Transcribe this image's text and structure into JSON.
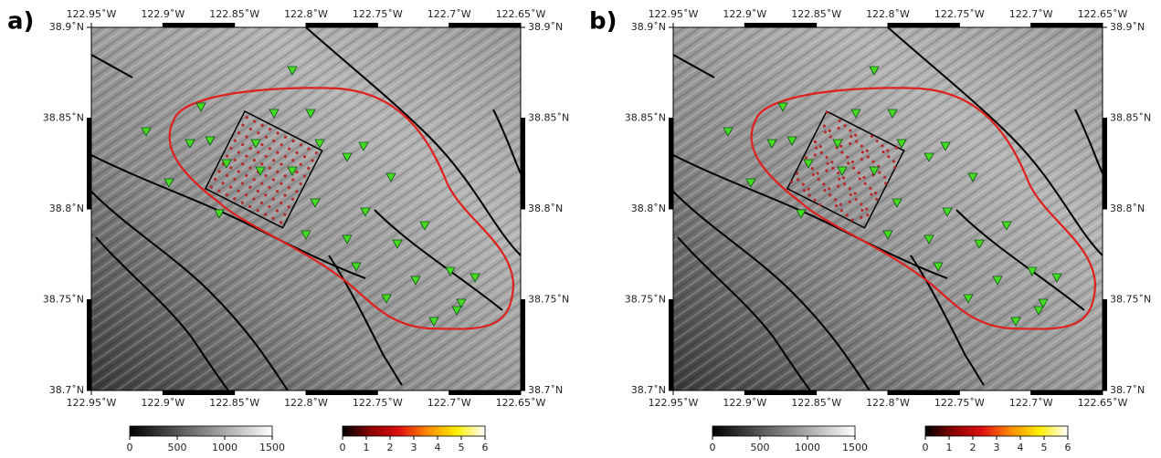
{
  "panels": [
    {
      "label": "a)",
      "xlim": [
        -122.95,
        -122.65
      ],
      "ylim": [
        38.7,
        38.9
      ],
      "xticks": [
        {
          "value": -122.95,
          "label": "122.95˚W"
        },
        {
          "value": -122.9,
          "label": "122.9˚W"
        },
        {
          "value": -122.85,
          "label": "122.85˚W"
        },
        {
          "value": -122.8,
          "label": "122.8˚W"
        },
        {
          "value": -122.75,
          "label": "122.75˚W"
        },
        {
          "value": -122.7,
          "label": "122.7˚W"
        },
        {
          "value": -122.65,
          "label": "122.65˚W"
        }
      ],
      "yticks": [
        {
          "value": 38.7,
          "label": "38.7˚N"
        },
        {
          "value": 38.75,
          "label": "38.75˚N"
        },
        {
          "value": 38.8,
          "label": "38.8˚N"
        },
        {
          "value": 38.85,
          "label": "38.85˚N"
        },
        {
          "value": 38.9,
          "label": "38.9˚N"
        }
      ],
      "colorbars": [
        {
          "lim": [
            0,
            1500
          ],
          "ticks": [
            0,
            500,
            1000,
            1500
          ],
          "colors": [
            "#000000",
            "#ffffff"
          ]
        },
        {
          "lim": [
            0,
            6
          ],
          "ticks": [
            0,
            1,
            2,
            3,
            4,
            5,
            6
          ],
          "colors": [
            "#000000",
            "#8b0000",
            "#e01010",
            "#ff8c00",
            "#ffee00",
            "#ffffff"
          ]
        }
      ]
    },
    {
      "label": "b)",
      "xlim": [
        -122.95,
        -122.65
      ],
      "ylim": [
        38.7,
        38.9
      ],
      "xticks": [
        {
          "value": -122.95,
          "label": "122.95˚W"
        },
        {
          "value": -122.9,
          "label": "122.9˚W"
        },
        {
          "value": -122.85,
          "label": "122.85˚W"
        },
        {
          "value": -122.8,
          "label": "122.8˚W"
        },
        {
          "value": -122.75,
          "label": "122.75˚W"
        },
        {
          "value": -122.7,
          "label": "122.7˚W"
        },
        {
          "value": -122.65,
          "label": "122.65˚W"
        }
      ],
      "yticks": [
        {
          "value": 38.7,
          "label": "38.7˚N"
        },
        {
          "value": 38.75,
          "label": "38.75˚N"
        },
        {
          "value": 38.8,
          "label": "38.8˚N"
        },
        {
          "value": 38.85,
          "label": "38.85˚N"
        },
        {
          "value": 38.9,
          "label": "38.9˚N"
        }
      ],
      "colorbars": [
        {
          "lim": [
            0,
            1500
          ],
          "ticks": [
            0,
            500,
            1000,
            1500
          ],
          "colors": [
            "#000000",
            "#ffffff"
          ]
        },
        {
          "lim": [
            0,
            6
          ],
          "ticks": [
            0,
            1,
            2,
            3,
            4,
            5,
            6
          ],
          "colors": [
            "#000000",
            "#8b0000",
            "#e01010",
            "#ff8c00",
            "#ffee00",
            "#ffffff"
          ]
        }
      ]
    }
  ]
}
